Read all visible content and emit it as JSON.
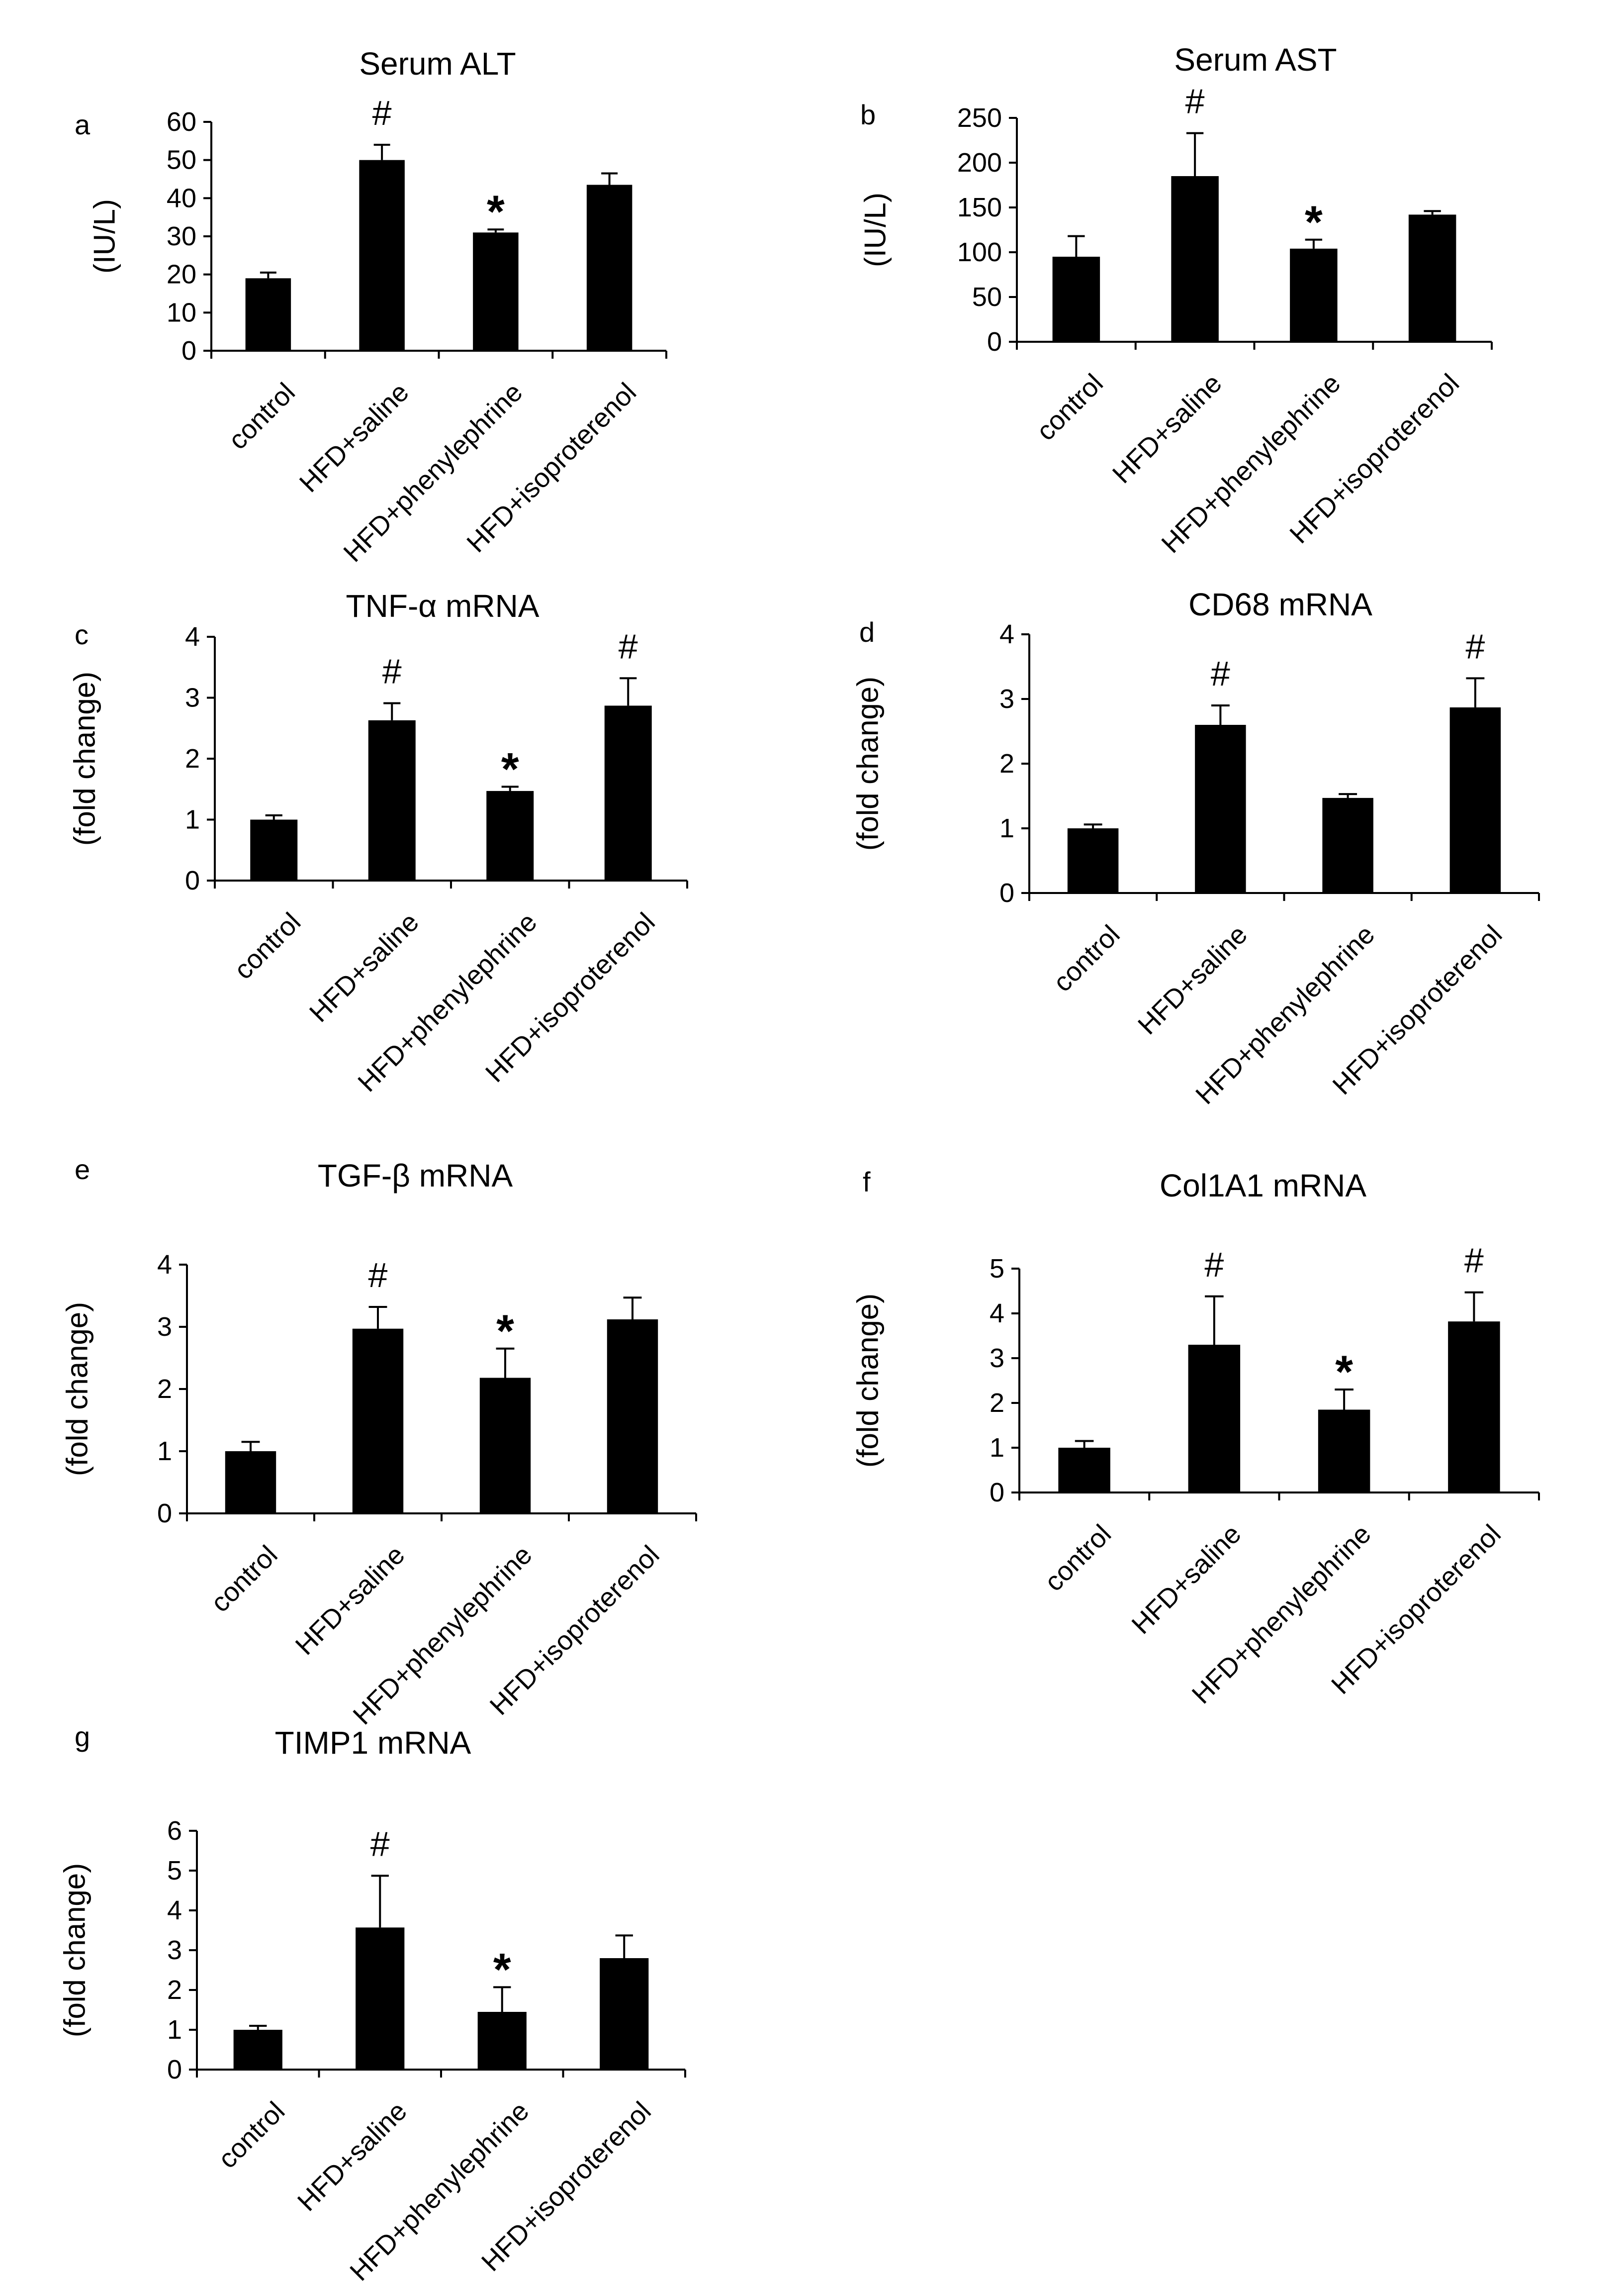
{
  "chart_data": [
    {
      "panel": "a",
      "type": "bar",
      "title": "Serum ALT",
      "ylabel": "(IU/L)",
      "xlabel": "",
      "categories": [
        "control",
        "HFD+saline",
        "HFD+phenylephrine",
        "HFD+isoproterenol"
      ],
      "values": [
        19,
        50,
        31,
        43.5
      ],
      "errors": [
        1.5,
        4,
        0.8,
        3
      ],
      "annotations": [
        "",
        "#",
        "*",
        ""
      ],
      "ylim": [
        0,
        60
      ],
      "yticks": [
        0,
        10,
        20,
        30,
        40,
        50,
        60
      ],
      "grid": false
    },
    {
      "panel": "b",
      "type": "bar",
      "title": "Serum AST",
      "ylabel": "(IU/L)",
      "xlabel": "",
      "categories": [
        "control",
        "HFD+saline",
        "HFD+phenylephrine",
        "HFD+isoproterenol"
      ],
      "values": [
        95,
        185,
        104,
        142
      ],
      "errors": [
        23,
        48,
        10,
        4
      ],
      "annotations": [
        "",
        "#",
        "*",
        ""
      ],
      "ylim": [
        0,
        250
      ],
      "yticks": [
        0,
        50,
        100,
        150,
        200,
        250
      ],
      "grid": false
    },
    {
      "panel": "c",
      "type": "bar",
      "title": "TNF-α  mRNA",
      "ylabel": "(fold change)",
      "xlabel": "",
      "categories": [
        "control",
        "HFD+saline",
        "HFD+phenylephrine",
        "HFD+isoproterenol"
      ],
      "values": [
        1.0,
        2.63,
        1.47,
        2.87
      ],
      "errors": [
        0.07,
        0.28,
        0.07,
        0.45
      ],
      "annotations": [
        "",
        "#",
        "*",
        "#"
      ],
      "ylim": [
        0,
        4
      ],
      "yticks": [
        0,
        1,
        2,
        3,
        4
      ],
      "grid": false
    },
    {
      "panel": "d",
      "type": "bar",
      "title": "CD68  mRNA",
      "ylabel": "(fold change)",
      "xlabel": "",
      "categories": [
        "control",
        "HFD+saline",
        "HFD+phenylephrine",
        "HFD+isoproterenol"
      ],
      "values": [
        1.0,
        2.6,
        1.47,
        2.87
      ],
      "errors": [
        0.06,
        0.3,
        0.06,
        0.45
      ],
      "annotations": [
        "",
        "#",
        "",
        "#"
      ],
      "ylim": [
        0,
        4
      ],
      "yticks": [
        0,
        1,
        2,
        3,
        4
      ],
      "grid": false
    },
    {
      "panel": "e",
      "type": "bar",
      "title": "TGF-β  mRNA",
      "ylabel": "(fold change)",
      "xlabel": "",
      "categories": [
        "control",
        "HFD+saline",
        "HFD+phenylephrine",
        "HFD+isoproterenol"
      ],
      "values": [
        1.0,
        2.97,
        2.18,
        3.12
      ],
      "errors": [
        0.15,
        0.35,
        0.47,
        0.35
      ],
      "annotations": [
        "",
        "#",
        "*",
        ""
      ],
      "ylim": [
        0,
        4
      ],
      "yticks": [
        0,
        1,
        2,
        3,
        4
      ],
      "grid": false
    },
    {
      "panel": "f",
      "type": "bar",
      "title": "Col1A1   mRNA",
      "ylabel": "(fold change)",
      "xlabel": "",
      "categories": [
        "control",
        "HFD+saline",
        "HFD+phenylephrine",
        "HFD+isoproterenol"
      ],
      "values": [
        1.0,
        3.3,
        1.85,
        3.82
      ],
      "errors": [
        0.15,
        1.08,
        0.45,
        0.65
      ],
      "annotations": [
        "",
        "#",
        "*",
        "#"
      ],
      "ylim": [
        0,
        5
      ],
      "yticks": [
        0,
        1,
        2,
        3,
        4,
        5
      ],
      "grid": false
    },
    {
      "panel": "g",
      "type": "bar",
      "title": "TIMP1  mRNA",
      "ylabel": "(fold change)",
      "xlabel": "",
      "categories": [
        "control",
        "HFD+saline",
        "HFD+phenylephrine",
        "HFD+isoproterenol"
      ],
      "values": [
        1.0,
        3.57,
        1.45,
        2.8
      ],
      "errors": [
        0.1,
        1.3,
        0.62,
        0.57
      ],
      "annotations": [
        "",
        "#",
        "*",
        ""
      ],
      "ylim": [
        0,
        6
      ],
      "yticks": [
        0,
        1,
        2,
        3,
        4,
        5,
        6
      ],
      "grid": false
    }
  ]
}
